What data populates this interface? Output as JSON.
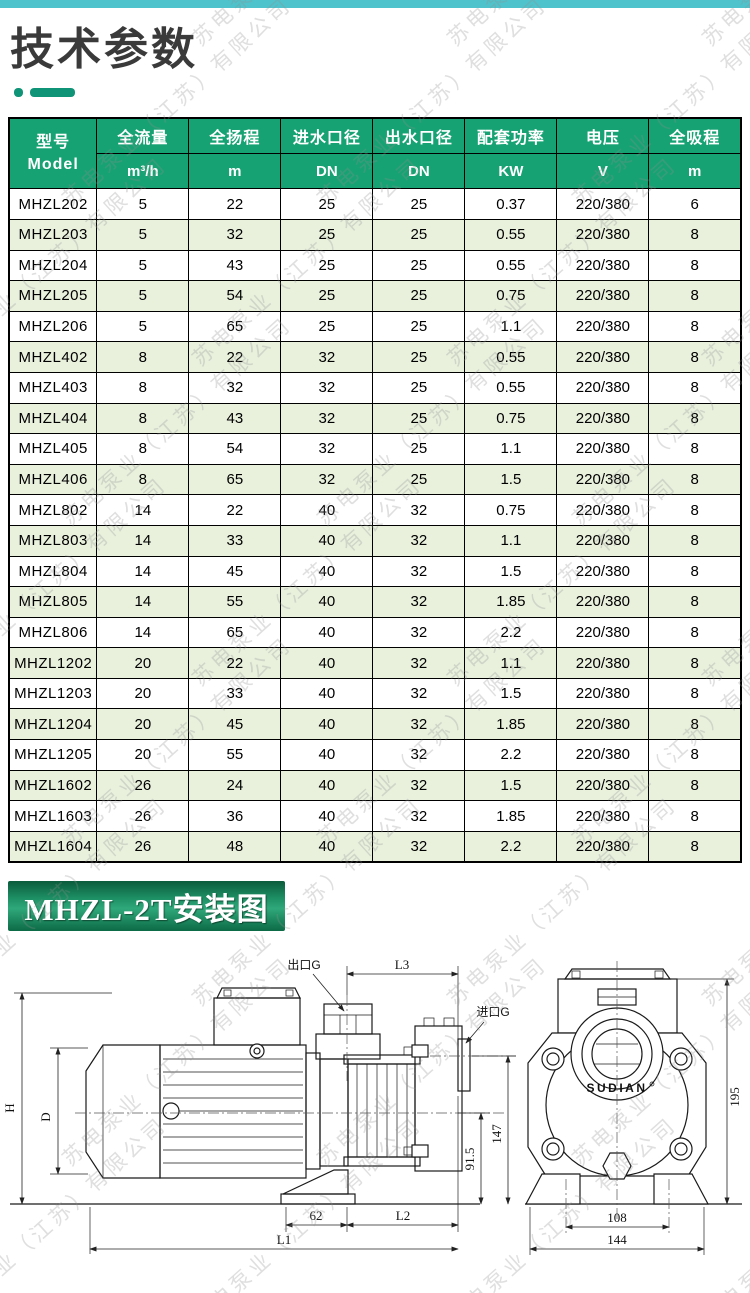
{
  "page": {
    "title": "技术参数",
    "section2_title": "MHZL-2T安装图",
    "watermark": "苏电泵业（江苏）有限公司"
  },
  "colors": {
    "top_bar": "#4fc3cb",
    "table_header_green": "#17a273",
    "row_alt_green": "#e9f1dd",
    "accent_green": "#0f9478",
    "banner_green_dark": "#0a5c3c",
    "banner_green_light": "#2fa87a"
  },
  "table": {
    "col1_header": {
      "line1": "型号",
      "line2": "Model"
    },
    "columns": [
      {
        "label": "全流量",
        "unit": "m³/h"
      },
      {
        "label": "全扬程",
        "unit": "m"
      },
      {
        "label": "进水口径",
        "unit": "DN"
      },
      {
        "label": "出水口径",
        "unit": "DN"
      },
      {
        "label": "配套功率",
        "unit": "KW"
      },
      {
        "label": "电压",
        "unit": "V"
      },
      {
        "label": "全吸程",
        "unit": "m"
      }
    ],
    "rows": [
      [
        "MHZL202",
        "5",
        "22",
        "25",
        "25",
        "0.37",
        "220/380",
        "6"
      ],
      [
        "MHZL203",
        "5",
        "32",
        "25",
        "25",
        "0.55",
        "220/380",
        "8"
      ],
      [
        "MHZL204",
        "5",
        "43",
        "25",
        "25",
        "0.55",
        "220/380",
        "8"
      ],
      [
        "MHZL205",
        "5",
        "54",
        "25",
        "25",
        "0.75",
        "220/380",
        "8"
      ],
      [
        "MHZL206",
        "5",
        "65",
        "25",
        "25",
        "1.1",
        "220/380",
        "8"
      ],
      [
        "MHZL402",
        "8",
        "22",
        "32",
        "25",
        "0.55",
        "220/380",
        "8"
      ],
      [
        "MHZL403",
        "8",
        "32",
        "32",
        "25",
        "0.55",
        "220/380",
        "8"
      ],
      [
        "MHZL404",
        "8",
        "43",
        "32",
        "25",
        "0.75",
        "220/380",
        "8"
      ],
      [
        "MHZL405",
        "8",
        "54",
        "32",
        "25",
        "1.1",
        "220/380",
        "8"
      ],
      [
        "MHZL406",
        "8",
        "65",
        "32",
        "25",
        "1.5",
        "220/380",
        "8"
      ],
      [
        "MHZL802",
        "14",
        "22",
        "40",
        "32",
        "0.75",
        "220/380",
        "8"
      ],
      [
        "MHZL803",
        "14",
        "33",
        "40",
        "32",
        "1.1",
        "220/380",
        "8"
      ],
      [
        "MHZL804",
        "14",
        "45",
        "40",
        "32",
        "1.5",
        "220/380",
        "8"
      ],
      [
        "MHZL805",
        "14",
        "55",
        "40",
        "32",
        "1.85",
        "220/380",
        "8"
      ],
      [
        "MHZL806",
        "14",
        "65",
        "40",
        "32",
        "2.2",
        "220/380",
        "8"
      ],
      [
        "MHZL1202",
        "20",
        "22",
        "40",
        "32",
        "1.1",
        "220/380",
        "8"
      ],
      [
        "MHZL1203",
        "20",
        "33",
        "40",
        "32",
        "1.5",
        "220/380",
        "8"
      ],
      [
        "MHZL1204",
        "20",
        "45",
        "40",
        "32",
        "1.85",
        "220/380",
        "8"
      ],
      [
        "MHZL1205",
        "20",
        "55",
        "40",
        "32",
        "2.2",
        "220/380",
        "8"
      ],
      [
        "MHZL1602",
        "26",
        "24",
        "40",
        "32",
        "1.5",
        "220/380",
        "8"
      ],
      [
        "MHZL1603",
        "26",
        "36",
        "40",
        "32",
        "1.85",
        "220/380",
        "8"
      ],
      [
        "MHZL1604",
        "26",
        "48",
        "40",
        "32",
        "2.2",
        "220/380",
        "8"
      ]
    ]
  },
  "diagram": {
    "labels": {
      "outlet": "出口G",
      "inlet": "进口G",
      "l3": "L3",
      "l2": "L2",
      "l1": "L1",
      "d62": "62",
      "d91_5": "91.5",
      "d147": "147",
      "d195": "195",
      "d108": "108",
      "d144": "144",
      "h": "H",
      "d": "D",
      "brand": "SUDIAN"
    }
  }
}
